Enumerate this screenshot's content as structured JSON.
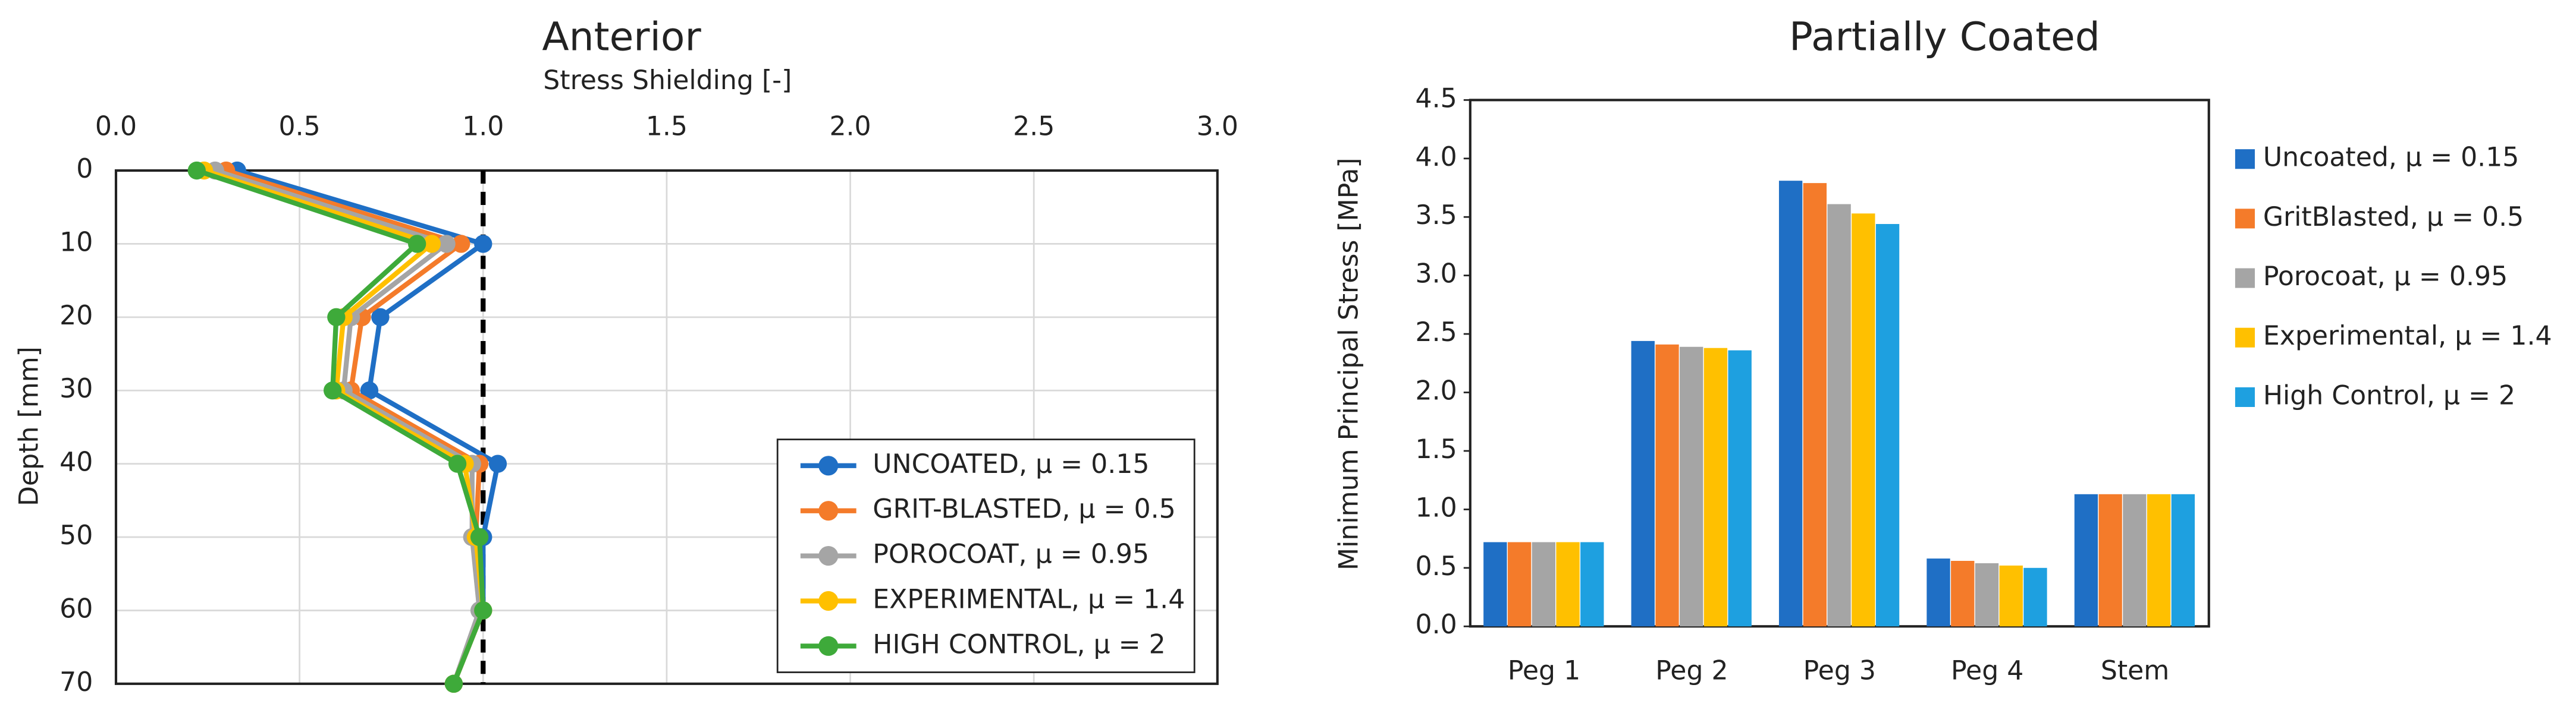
{
  "chart_data": [
    {
      "type": "line",
      "title": "Anterior",
      "x_label": "Stress Shielding [-]",
      "y_label": "Depth [mm]",
      "y": [
        0,
        10,
        20,
        30,
        40,
        50,
        60,
        70
      ],
      "series": [
        {
          "name": "UNCOATED, μ = 0.15",
          "color": "#1f6fc5",
          "values": [
            0.33,
            1.0,
            0.72,
            0.69,
            1.04,
            1.0,
            1.0,
            0.92
          ]
        },
        {
          "name": "GRIT-BLASTED, μ = 0.5",
          "color": "#f47b2a",
          "values": [
            0.3,
            0.94,
            0.67,
            0.64,
            0.99,
            0.98,
            1.0,
            0.92
          ]
        },
        {
          "name": "POROCOAT, μ = 0.95",
          "color": "#a5a5a5",
          "values": [
            0.27,
            0.9,
            0.64,
            0.62,
            0.97,
            0.97,
            0.99,
            0.92
          ]
        },
        {
          "name": "EXPERIMENTAL, μ = 1.4",
          "color": "#ffc000",
          "values": [
            0.24,
            0.86,
            0.62,
            0.6,
            0.95,
            0.98,
            1.0,
            0.92
          ]
        },
        {
          "name": "HIGH CONTROL, μ = 2",
          "color": "#3eaa3a",
          "values": [
            0.22,
            0.82,
            0.6,
            0.59,
            0.93,
            0.99,
            1.0,
            0.92
          ]
        }
      ],
      "xlim": [
        0,
        3
      ],
      "xticks": [
        {
          "value": 0,
          "label": "0.0"
        },
        0.5,
        {
          "value": 1,
          "label": "1.0"
        },
        1.5,
        {
          "value": 2,
          "label": "2.0"
        },
        2.5,
        {
          "value": 3,
          "label": "3.0"
        }
      ],
      "ylim": [
        0,
        70
      ],
      "yticks": [
        0,
        10,
        20,
        30,
        40,
        50,
        60,
        70
      ],
      "y_inverted": true,
      "x_axis_position": "top",
      "reference_x": 1,
      "grid": true,
      "legend": "lower-right"
    },
    {
      "type": "bar",
      "title": "Partially Coated",
      "y_label": "Minimum Principal Stress [MPa]",
      "categories": [
        "Peg 1",
        "Peg 2",
        "Peg 3",
        "Peg 4",
        "Stem"
      ],
      "series": [
        {
          "name": "Uncoated, μ = 0.15",
          "color": "#1f6fc5",
          "values": [
            0.72,
            2.44,
            3.81,
            0.58,
            1.13
          ]
        },
        {
          "name": "GritBlasted, μ = 0.5",
          "color": "#f47b2a",
          "values": [
            0.72,
            2.41,
            3.79,
            0.56,
            1.13
          ]
        },
        {
          "name": "Porocoat, μ = 0.95",
          "color": "#a5a5a5",
          "values": [
            0.72,
            2.39,
            3.61,
            0.54,
            1.13
          ]
        },
        {
          "name": "Experimental, μ = 1.4",
          "color": "#ffc000",
          "values": [
            0.72,
            2.38,
            3.53,
            0.52,
            1.13
          ]
        },
        {
          "name": "High Control, μ = 2",
          "color": "#1ea0e0",
          "values": [
            0.72,
            2.36,
            3.44,
            0.5,
            1.13
          ]
        }
      ],
      "ylim": [
        0,
        4.5
      ],
      "yticks": [
        {
          "value": 0,
          "label": "0.0"
        },
        0.5,
        {
          "value": 1,
          "label": "1.0"
        },
        1.5,
        {
          "value": 2,
          "label": "2.0"
        },
        2.5,
        {
          "value": 3,
          "label": "3.0"
        },
        3.5,
        {
          "value": 4,
          "label": "4.0"
        },
        4.5
      ],
      "grid": false,
      "legend": "right"
    }
  ]
}
